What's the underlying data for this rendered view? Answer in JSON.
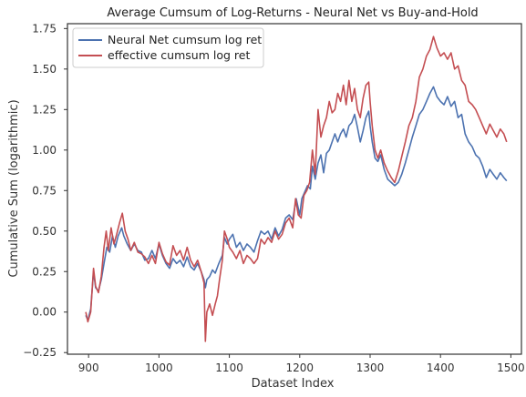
{
  "chart_data": {
    "type": "line",
    "title": "Average Cumsum of Log-Returns - Neural Net vs Buy-and-Hold",
    "xlabel": "Dataset Index",
    "ylabel": "Cumulative Sum (logarithmic)",
    "xlim": [
      870,
      1515
    ],
    "ylim": [
      -0.26,
      1.78
    ],
    "xticks": [
      900,
      1000,
      1100,
      1200,
      1300,
      1400,
      1500
    ],
    "yticks": [
      -0.25,
      0.0,
      0.25,
      0.5,
      0.75,
      1.0,
      1.25,
      1.5,
      1.75
    ],
    "ytick_labels": [
      "−0.25",
      "0.00",
      "0.25",
      "0.50",
      "0.75",
      "1.00",
      "1.25",
      "1.50",
      "1.75"
    ],
    "grid": false,
    "legend_position": "top-left",
    "series": [
      {
        "name": "Neural Net cumsum log ret",
        "color": "#4c72b0",
        "points": [
          [
            896,
            -0.02
          ],
          [
            899,
            -0.05
          ],
          [
            903,
            0.02
          ],
          [
            907,
            0.25
          ],
          [
            910,
            0.15
          ],
          [
            914,
            0.13
          ],
          [
            918,
            0.2
          ],
          [
            922,
            0.3
          ],
          [
            926,
            0.4
          ],
          [
            930,
            0.37
          ],
          [
            934,
            0.47
          ],
          [
            938,
            0.4
          ],
          [
            942,
            0.47
          ],
          [
            947,
            0.52
          ],
          [
            950,
            0.47
          ],
          [
            955,
            0.42
          ],
          [
            960,
            0.38
          ],
          [
            965,
            0.42
          ],
          [
            970,
            0.38
          ],
          [
            975,
            0.37
          ],
          [
            980,
            0.32
          ],
          [
            985,
            0.33
          ],
          [
            990,
            0.38
          ],
          [
            995,
            0.33
          ],
          [
            1000,
            0.42
          ],
          [
            1005,
            0.35
          ],
          [
            1010,
            0.3
          ],
          [
            1015,
            0.27
          ],
          [
            1020,
            0.33
          ],
          [
            1025,
            0.3
          ],
          [
            1030,
            0.32
          ],
          [
            1035,
            0.28
          ],
          [
            1040,
            0.34
          ],
          [
            1045,
            0.28
          ],
          [
            1050,
            0.26
          ],
          [
            1055,
            0.3
          ],
          [
            1060,
            0.25
          ],
          [
            1064,
            0.2
          ],
          [
            1066,
            0.15
          ],
          [
            1068,
            0.2
          ],
          [
            1072,
            0.22
          ],
          [
            1076,
            0.26
          ],
          [
            1080,
            0.24
          ],
          [
            1085,
            0.3
          ],
          [
            1090,
            0.35
          ],
          [
            1093,
            0.46
          ],
          [
            1097,
            0.42
          ],
          [
            1100,
            0.45
          ],
          [
            1105,
            0.48
          ],
          [
            1110,
            0.4
          ],
          [
            1115,
            0.43
          ],
          [
            1120,
            0.38
          ],
          [
            1125,
            0.42
          ],
          [
            1130,
            0.4
          ],
          [
            1135,
            0.37
          ],
          [
            1140,
            0.44
          ],
          [
            1145,
            0.5
          ],
          [
            1150,
            0.48
          ],
          [
            1155,
            0.5
          ],
          [
            1160,
            0.45
          ],
          [
            1165,
            0.52
          ],
          [
            1170,
            0.47
          ],
          [
            1175,
            0.51
          ],
          [
            1180,
            0.58
          ],
          [
            1185,
            0.6
          ],
          [
            1190,
            0.57
          ],
          [
            1195,
            0.7
          ],
          [
            1200,
            0.6
          ],
          [
            1203,
            0.7
          ],
          [
            1207,
            0.74
          ],
          [
            1211,
            0.78
          ],
          [
            1215,
            0.76
          ],
          [
            1218,
            0.9
          ],
          [
            1222,
            0.82
          ],
          [
            1226,
            0.92
          ],
          [
            1230,
            0.97
          ],
          [
            1234,
            0.86
          ],
          [
            1238,
            0.98
          ],
          [
            1242,
            1.0
          ],
          [
            1246,
            1.05
          ],
          [
            1250,
            1.1
          ],
          [
            1254,
            1.05
          ],
          [
            1258,
            1.1
          ],
          [
            1262,
            1.13
          ],
          [
            1266,
            1.08
          ],
          [
            1270,
            1.15
          ],
          [
            1274,
            1.17
          ],
          [
            1278,
            1.22
          ],
          [
            1282,
            1.14
          ],
          [
            1286,
            1.05
          ],
          [
            1290,
            1.12
          ],
          [
            1294,
            1.2
          ],
          [
            1298,
            1.24
          ],
          [
            1300,
            1.15
          ],
          [
            1303,
            1.05
          ],
          [
            1307,
            0.95
          ],
          [
            1311,
            0.93
          ],
          [
            1315,
            0.97
          ],
          [
            1320,
            0.88
          ],
          [
            1325,
            0.82
          ],
          [
            1330,
            0.8
          ],
          [
            1335,
            0.78
          ],
          [
            1340,
            0.8
          ],
          [
            1345,
            0.85
          ],
          [
            1350,
            0.92
          ],
          [
            1355,
            1.0
          ],
          [
            1360,
            1.08
          ],
          [
            1365,
            1.15
          ],
          [
            1370,
            1.22
          ],
          [
            1375,
            1.25
          ],
          [
            1380,
            1.3
          ],
          [
            1385,
            1.35
          ],
          [
            1390,
            1.39
          ],
          [
            1395,
            1.33
          ],
          [
            1400,
            1.3
          ],
          [
            1405,
            1.28
          ],
          [
            1410,
            1.33
          ],
          [
            1415,
            1.27
          ],
          [
            1420,
            1.3
          ],
          [
            1425,
            1.2
          ],
          [
            1430,
            1.22
          ],
          [
            1435,
            1.1
          ],
          [
            1440,
            1.05
          ],
          [
            1445,
            1.02
          ],
          [
            1450,
            0.97
          ],
          [
            1455,
            0.95
          ],
          [
            1460,
            0.9
          ],
          [
            1465,
            0.83
          ],
          [
            1470,
            0.88
          ],
          [
            1475,
            0.85
          ],
          [
            1480,
            0.82
          ],
          [
            1485,
            0.86
          ],
          [
            1490,
            0.83
          ],
          [
            1494,
            0.81
          ]
        ]
      },
      {
        "name": "effective cumsum log ret",
        "color": "#c44e52",
        "points": [
          [
            896,
            0.0
          ],
          [
            899,
            -0.06
          ],
          [
            903,
            0.0
          ],
          [
            907,
            0.27
          ],
          [
            910,
            0.16
          ],
          [
            914,
            0.12
          ],
          [
            918,
            0.22
          ],
          [
            922,
            0.4
          ],
          [
            925,
            0.5
          ],
          [
            928,
            0.38
          ],
          [
            932,
            0.52
          ],
          [
            936,
            0.42
          ],
          [
            940,
            0.48
          ],
          [
            944,
            0.55
          ],
          [
            948,
            0.61
          ],
          [
            952,
            0.5
          ],
          [
            956,
            0.45
          ],
          [
            960,
            0.38
          ],
          [
            965,
            0.43
          ],
          [
            970,
            0.37
          ],
          [
            975,
            0.36
          ],
          [
            980,
            0.34
          ],
          [
            985,
            0.3
          ],
          [
            990,
            0.35
          ],
          [
            995,
            0.3
          ],
          [
            1000,
            0.43
          ],
          [
            1005,
            0.36
          ],
          [
            1010,
            0.31
          ],
          [
            1015,
            0.29
          ],
          [
            1020,
            0.41
          ],
          [
            1025,
            0.35
          ],
          [
            1030,
            0.38
          ],
          [
            1035,
            0.32
          ],
          [
            1040,
            0.4
          ],
          [
            1045,
            0.32
          ],
          [
            1050,
            0.28
          ],
          [
            1055,
            0.32
          ],
          [
            1060,
            0.25
          ],
          [
            1064,
            0.18
          ],
          [
            1066,
            -0.18
          ],
          [
            1068,
            0.0
          ],
          [
            1072,
            0.05
          ],
          [
            1076,
            -0.02
          ],
          [
            1080,
            0.05
          ],
          [
            1083,
            0.1
          ],
          [
            1086,
            0.2
          ],
          [
            1090,
            0.32
          ],
          [
            1093,
            0.5
          ],
          [
            1097,
            0.45
          ],
          [
            1100,
            0.4
          ],
          [
            1105,
            0.37
          ],
          [
            1110,
            0.33
          ],
          [
            1115,
            0.38
          ],
          [
            1120,
            0.3
          ],
          [
            1125,
            0.35
          ],
          [
            1130,
            0.33
          ],
          [
            1135,
            0.3
          ],
          [
            1140,
            0.33
          ],
          [
            1145,
            0.45
          ],
          [
            1150,
            0.42
          ],
          [
            1155,
            0.46
          ],
          [
            1160,
            0.43
          ],
          [
            1165,
            0.5
          ],
          [
            1170,
            0.45
          ],
          [
            1175,
            0.48
          ],
          [
            1180,
            0.55
          ],
          [
            1185,
            0.58
          ],
          [
            1190,
            0.52
          ],
          [
            1194,
            0.7
          ],
          [
            1198,
            0.6
          ],
          [
            1202,
            0.58
          ],
          [
            1206,
            0.72
          ],
          [
            1210,
            0.75
          ],
          [
            1214,
            0.8
          ],
          [
            1218,
            1.0
          ],
          [
            1222,
            0.85
          ],
          [
            1226,
            1.25
          ],
          [
            1230,
            1.08
          ],
          [
            1234,
            1.15
          ],
          [
            1238,
            1.2
          ],
          [
            1242,
            1.3
          ],
          [
            1246,
            1.23
          ],
          [
            1250,
            1.25
          ],
          [
            1254,
            1.35
          ],
          [
            1258,
            1.3
          ],
          [
            1262,
            1.4
          ],
          [
            1266,
            1.28
          ],
          [
            1270,
            1.43
          ],
          [
            1274,
            1.3
          ],
          [
            1278,
            1.38
          ],
          [
            1282,
            1.25
          ],
          [
            1286,
            1.2
          ],
          [
            1290,
            1.32
          ],
          [
            1294,
            1.4
          ],
          [
            1298,
            1.42
          ],
          [
            1300,
            1.3
          ],
          [
            1303,
            1.15
          ],
          [
            1307,
            1.0
          ],
          [
            1311,
            0.95
          ],
          [
            1315,
            1.0
          ],
          [
            1320,
            0.92
          ],
          [
            1325,
            0.87
          ],
          [
            1330,
            0.83
          ],
          [
            1335,
            0.8
          ],
          [
            1340,
            0.87
          ],
          [
            1345,
            0.96
          ],
          [
            1350,
            1.05
          ],
          [
            1355,
            1.15
          ],
          [
            1360,
            1.2
          ],
          [
            1365,
            1.3
          ],
          [
            1370,
            1.45
          ],
          [
            1375,
            1.5
          ],
          [
            1380,
            1.58
          ],
          [
            1385,
            1.62
          ],
          [
            1390,
            1.7
          ],
          [
            1395,
            1.63
          ],
          [
            1400,
            1.58
          ],
          [
            1405,
            1.6
          ],
          [
            1410,
            1.56
          ],
          [
            1415,
            1.6
          ],
          [
            1420,
            1.5
          ],
          [
            1425,
            1.52
          ],
          [
            1430,
            1.43
          ],
          [
            1435,
            1.4
          ],
          [
            1440,
            1.3
          ],
          [
            1445,
            1.28
          ],
          [
            1450,
            1.25
          ],
          [
            1455,
            1.2
          ],
          [
            1460,
            1.15
          ],
          [
            1465,
            1.1
          ],
          [
            1470,
            1.16
          ],
          [
            1475,
            1.12
          ],
          [
            1480,
            1.08
          ],
          [
            1485,
            1.13
          ],
          [
            1490,
            1.1
          ],
          [
            1494,
            1.05
          ]
        ]
      }
    ]
  }
}
